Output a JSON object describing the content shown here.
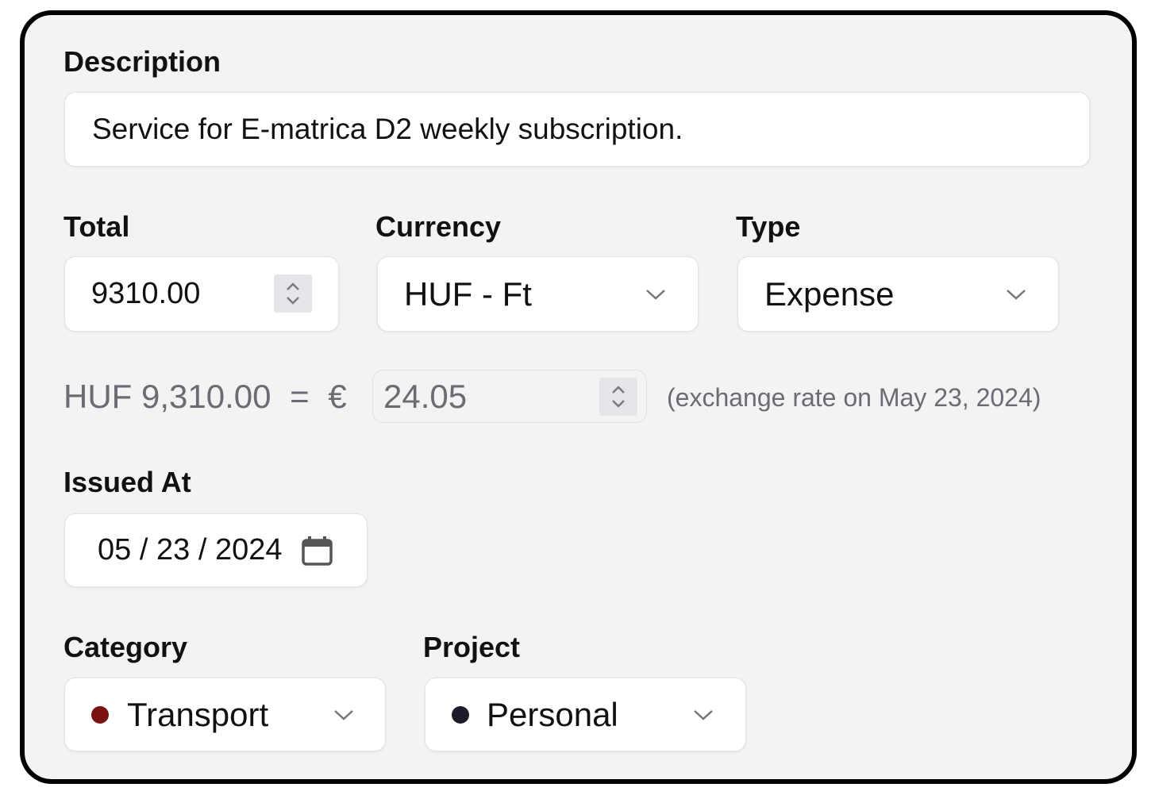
{
  "description": {
    "label": "Description",
    "value": "Service for E-matrica D2 weekly subscription."
  },
  "total": {
    "label": "Total",
    "value": "9310.00"
  },
  "currency": {
    "label": "Currency",
    "value": "HUF - Ft"
  },
  "type": {
    "label": "Type",
    "value": "Expense"
  },
  "conversion": {
    "source_amount": "HUF 9,310.00",
    "equals": "=",
    "target_symbol": "€",
    "target_value": "24.05",
    "note": "(exchange rate on May 23, 2024)"
  },
  "issued_at": {
    "label": "Issued At",
    "month": "05",
    "day": "23",
    "year": "2024",
    "separator": "/"
  },
  "category": {
    "label": "Category",
    "value": "Transport",
    "color": "#7a1212"
  },
  "project": {
    "label": "Project",
    "value": "Personal",
    "color": "#1c1c28"
  }
}
